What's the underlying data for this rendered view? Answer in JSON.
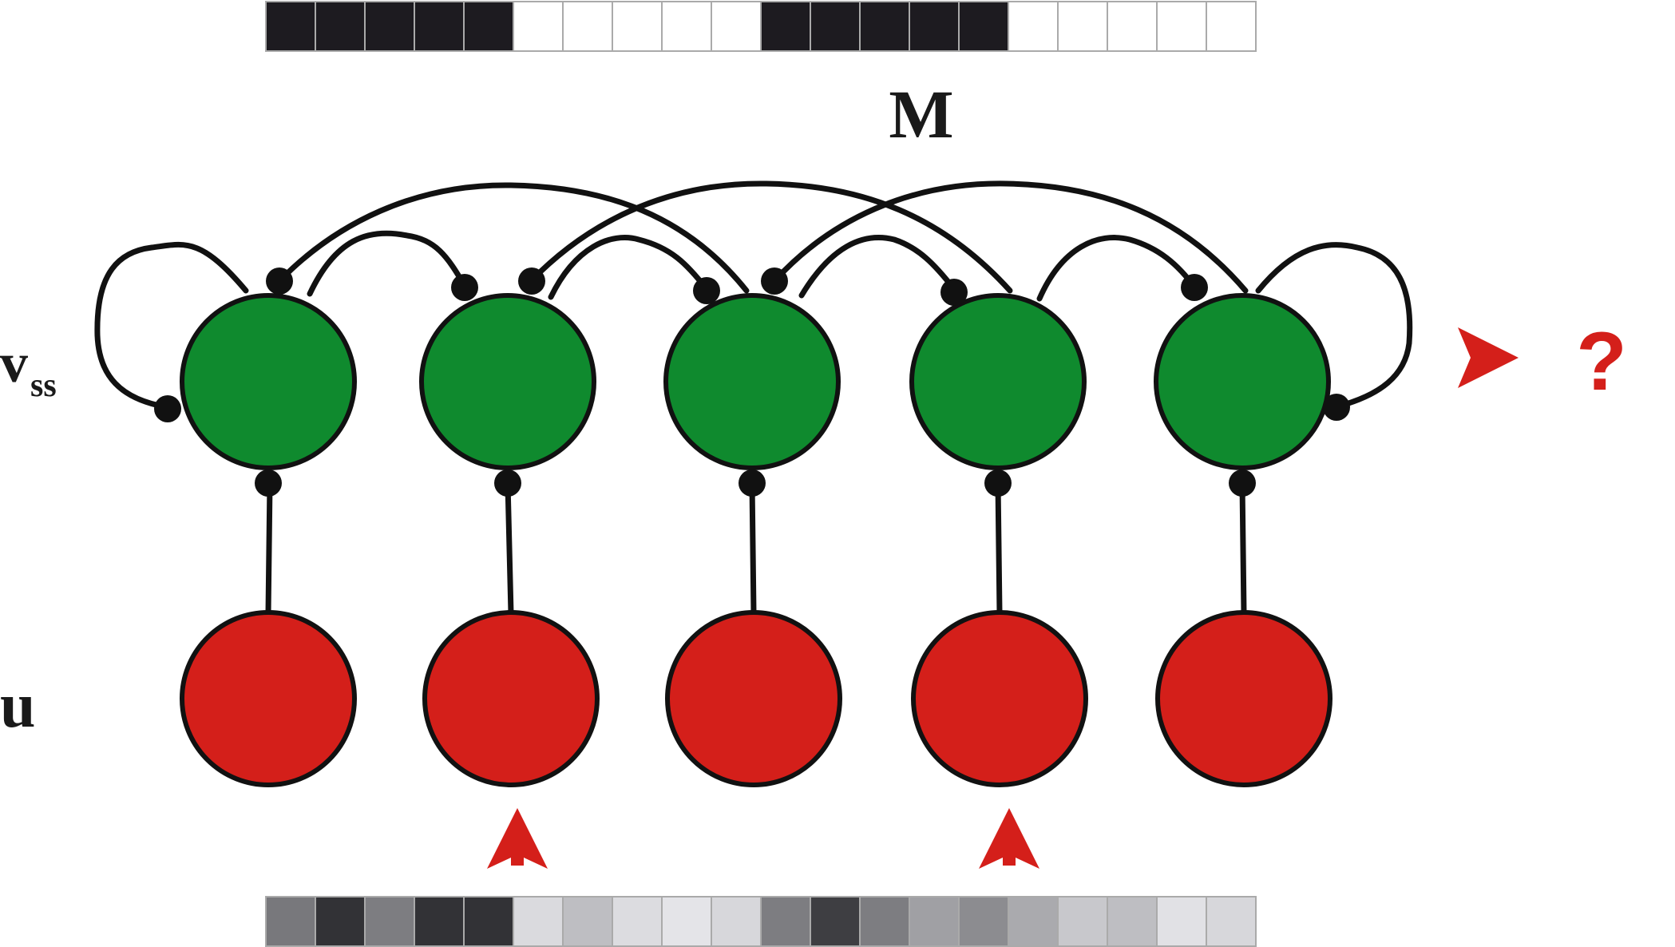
{
  "labels": {
    "memory_matrix": "M",
    "v_main": "v",
    "v_sub": "ss",
    "input_layer": "u",
    "output_query": "?"
  },
  "colors": {
    "excitatory_node": "#0f8a2e",
    "input_node": "#d41f1a",
    "arrow": "#d41f1a",
    "stroke": "#111111"
  },
  "memory_pattern": [
    1,
    1,
    1,
    1,
    1,
    0,
    0,
    0,
    0,
    0,
    1,
    1,
    1,
    1,
    1,
    0,
    0,
    0,
    0,
    0
  ],
  "input_pattern_gray": [
    120,
    50,
    125,
    50,
    50,
    218,
    190,
    220,
    228,
    215,
    125,
    62,
    125,
    160,
    140,
    170,
    200,
    190,
    225,
    215
  ],
  "num_units": 5,
  "input_arrow_units": [
    1,
    3
  ]
}
